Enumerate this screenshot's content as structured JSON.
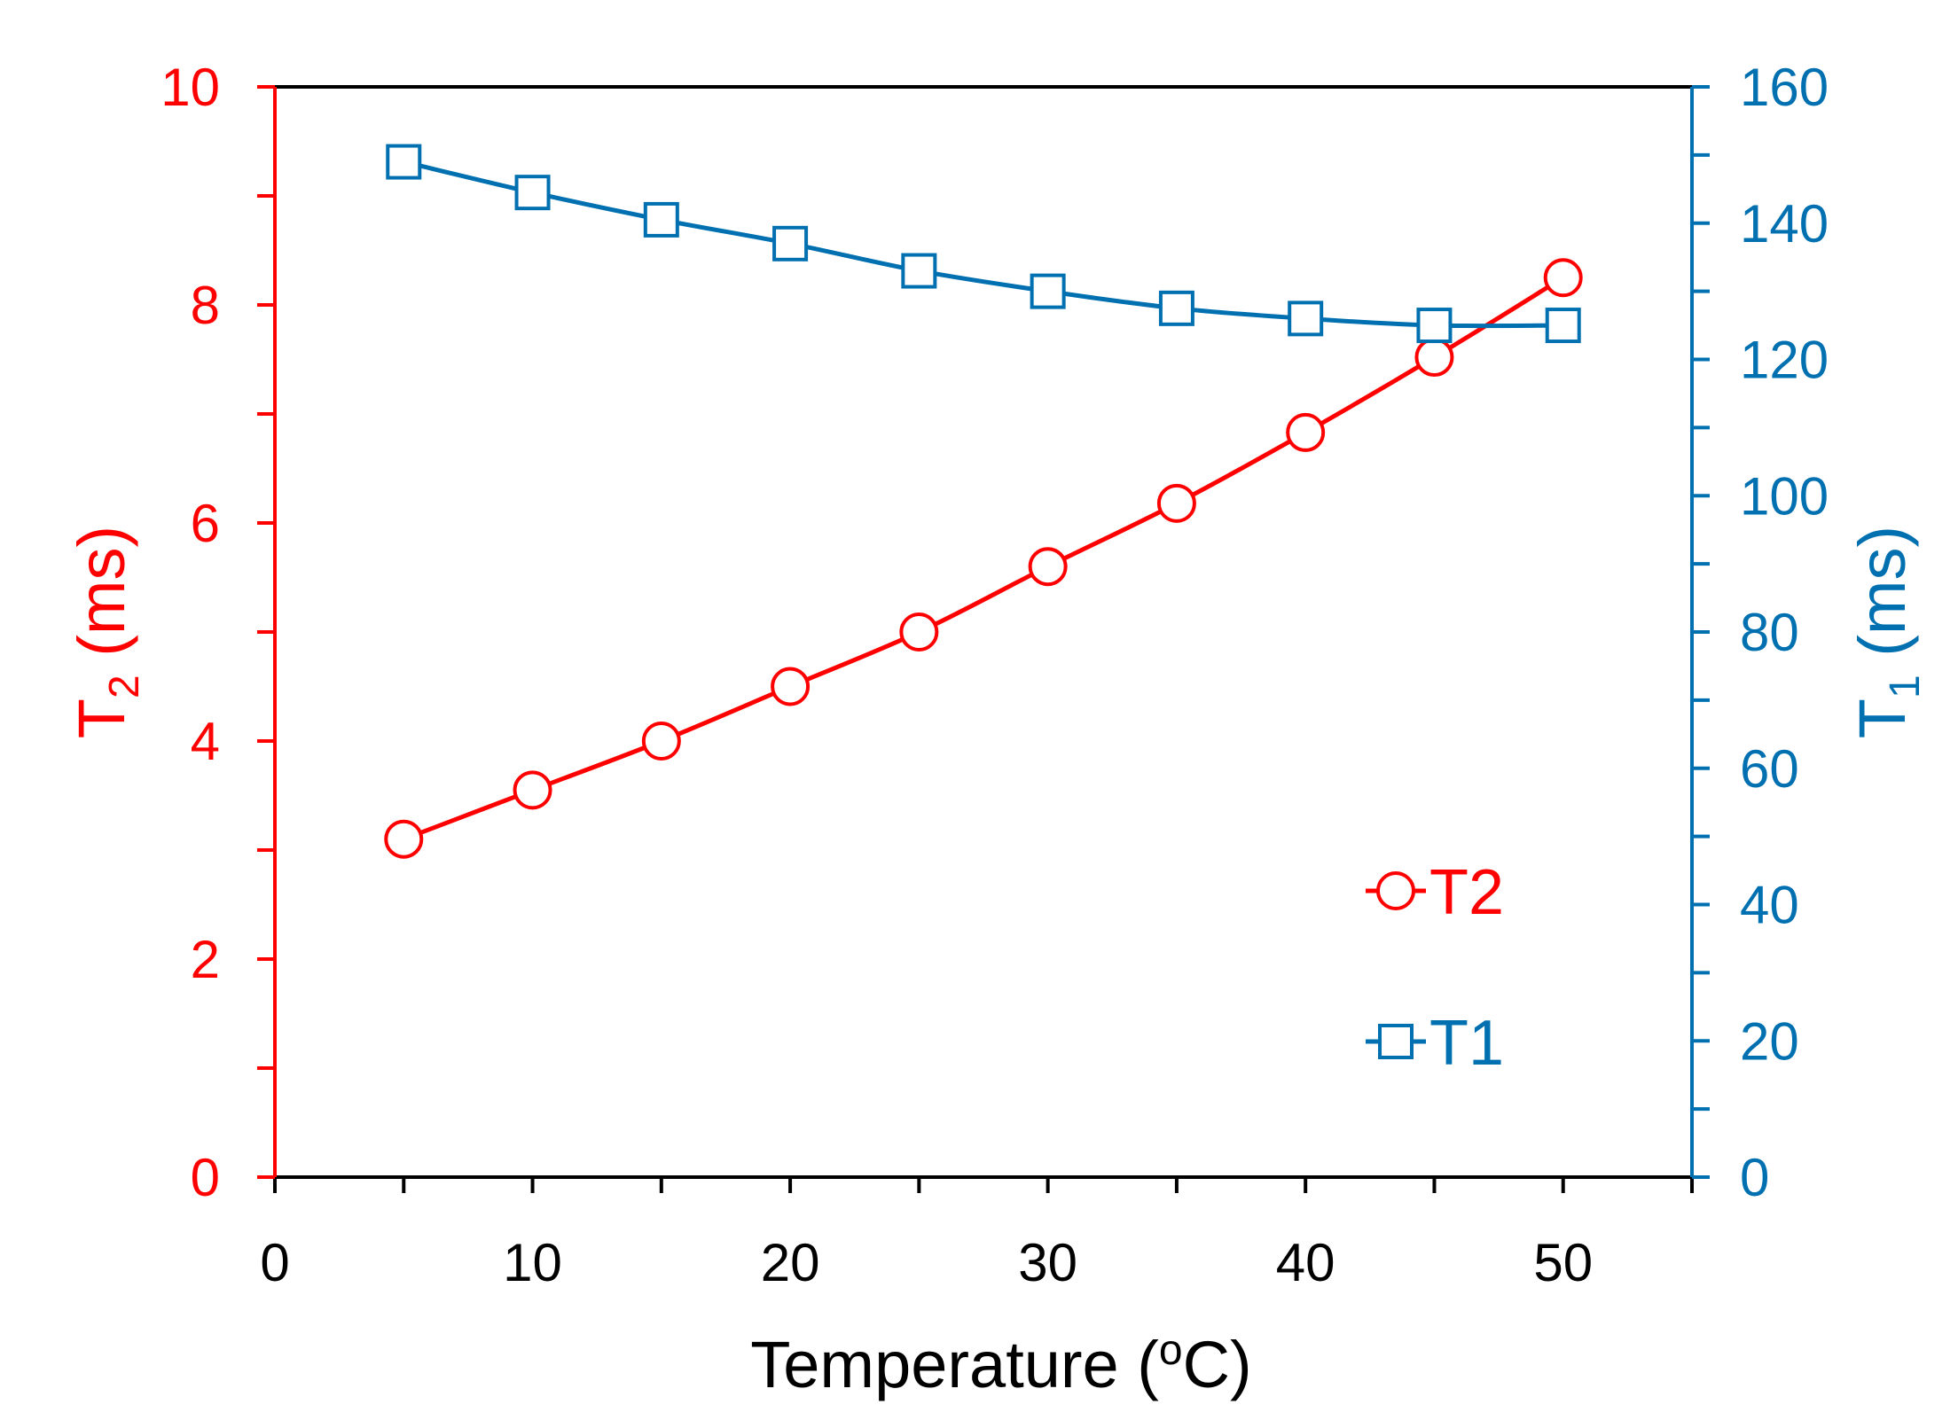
{
  "chart_data": {
    "type": "line",
    "x": [
      5,
      10,
      15,
      20,
      25,
      30,
      35,
      40,
      45,
      50
    ],
    "xlim": [
      0,
      55
    ],
    "xticks": [
      "0",
      "10",
      "20",
      "30",
      "40",
      "50"
    ],
    "xlabel": {
      "main": "Temperature (",
      "sup": "o",
      "tail": "C)"
    },
    "y_left": {
      "label_main": "T",
      "label_sub": "2",
      "label_tail": " (ms)",
      "lim": [
        0,
        10
      ],
      "ticks": [
        "0",
        "2",
        "4",
        "6",
        "8",
        "10"
      ],
      "color": "#ff0000"
    },
    "y_right": {
      "label_main": "T",
      "label_sub": "1",
      "label_tail": " (ms)",
      "lim": [
        0,
        160
      ],
      "ticks": [
        "0",
        "20",
        "40",
        "60",
        "80",
        "100",
        "120",
        "140",
        "160"
      ],
      "color": "#0070b0"
    },
    "series": [
      {
        "name": "T2",
        "axis": "left",
        "marker": "circle",
        "color": "#ff0000",
        "values": [
          3.1,
          3.55,
          4.0,
          4.5,
          5.0,
          5.6,
          6.18,
          6.83,
          7.52,
          8.25
        ]
      },
      {
        "name": "T1",
        "axis": "right",
        "marker": "square",
        "color": "#0070b0",
        "values": [
          149,
          144.5,
          140.5,
          137,
          133,
          130,
          127.5,
          126,
          125,
          125
        ]
      }
    ],
    "legend": "bottom-right",
    "grid": false
  }
}
